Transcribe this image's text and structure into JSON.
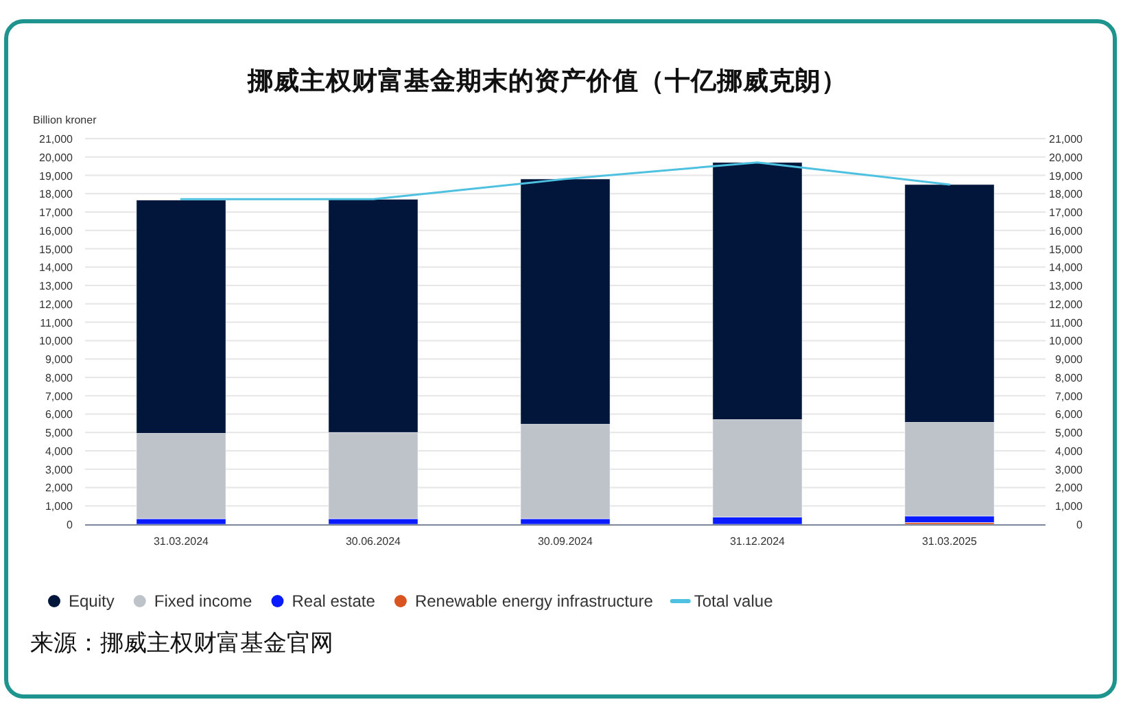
{
  "chart_data": {
    "type": "bar",
    "title": "挪威主权财富基金期末的资产价值（十亿挪威克朗）",
    "ylabel": "Billion kroner",
    "categories": [
      "31.03.2024",
      "30.06.2024",
      "30.09.2024",
      "31.12.2024",
      "31.03.2025"
    ],
    "stacked": true,
    "series": [
      {
        "name": "Renewable energy infrastructure",
        "color": "#d9541e",
        "values": [
          null,
          null,
          null,
          null,
          100
        ]
      },
      {
        "name": "Real estate",
        "color": "#0a1bff",
        "values": [
          300,
          300,
          300,
          400,
          350
        ]
      },
      {
        "name": "Fixed income",
        "color": "#bec2c9",
        "values": [
          4650,
          4700,
          5150,
          5300,
          5100
        ]
      },
      {
        "name": "Equity",
        "color": "#01163a",
        "values": [
          12700,
          12700,
          13350,
          14000,
          12950
        ]
      },
      {
        "name": "Total value",
        "type": "line",
        "color": "#4fc1e0",
        "values": [
          17700,
          17700,
          18800,
          19700,
          18500
        ]
      }
    ],
    "ylim": [
      0,
      21000
    ],
    "yticks": [
      0,
      {
        "value": 1000,
        "label": "1,000"
      },
      {
        "value": 2000,
        "label": "2,000"
      },
      {
        "value": 3000,
        "label": "3,000"
      },
      {
        "value": 4000,
        "label": "4,000"
      },
      {
        "value": 5000,
        "label": "5,000"
      },
      {
        "value": 6000,
        "label": "6,000"
      },
      {
        "value": 7000,
        "label": "7,000"
      },
      {
        "value": 8000,
        "label": "8,000"
      },
      {
        "value": 9000,
        "label": "9,000"
      },
      {
        "value": 10000,
        "label": "10,000"
      },
      {
        "value": 11000,
        "label": "11,000"
      },
      {
        "value": 12000,
        "label": "12,000"
      },
      {
        "value": 13000,
        "label": "13,000"
      },
      {
        "value": 14000,
        "label": "14,000"
      },
      {
        "value": 15000,
        "label": "15,000"
      },
      {
        "value": 16000,
        "label": "16,000"
      },
      {
        "value": 17000,
        "label": "17,000"
      },
      {
        "value": 18000,
        "label": "18,000"
      },
      {
        "value": 19000,
        "label": "19,000"
      },
      {
        "value": 20000,
        "label": "20,000"
      },
      {
        "value": 21000,
        "label": "21,000"
      }
    ],
    "y2lim": [
      0,
      21000
    ],
    "y2ticks": [
      0,
      {
        "value": 1000,
        "label": "1,000"
      },
      {
        "value": 2000,
        "label": "2,000"
      },
      {
        "value": 3000,
        "label": "3,000"
      },
      {
        "value": 4000,
        "label": "4,000"
      },
      {
        "value": 5000,
        "label": "5,000"
      },
      {
        "value": 6000,
        "label": "6,000"
      },
      {
        "value": 7000,
        "label": "7,000"
      },
      {
        "value": 8000,
        "label": "8,000"
      },
      {
        "value": 9000,
        "label": "9,000"
      },
      {
        "value": 10000,
        "label": "10,000"
      },
      {
        "value": 11000,
        "label": "11,000"
      },
      {
        "value": 12000,
        "label": "12,000"
      },
      {
        "value": 13000,
        "label": "13,000"
      },
      {
        "value": 14000,
        "label": "14,000"
      },
      {
        "value": 15000,
        "label": "15,000"
      },
      {
        "value": 16000,
        "label": "16,000"
      },
      {
        "value": 17000,
        "label": "17,000"
      },
      {
        "value": 18000,
        "label": "18,000"
      },
      {
        "value": 19000,
        "label": "19,000"
      },
      {
        "value": 20000,
        "label": "20,000"
      },
      {
        "value": 21000,
        "label": "21,000"
      }
    ],
    "grid": "y",
    "legend": "bottom",
    "annotations": [
      "来源：挪威主权财富基金官网"
    ]
  }
}
